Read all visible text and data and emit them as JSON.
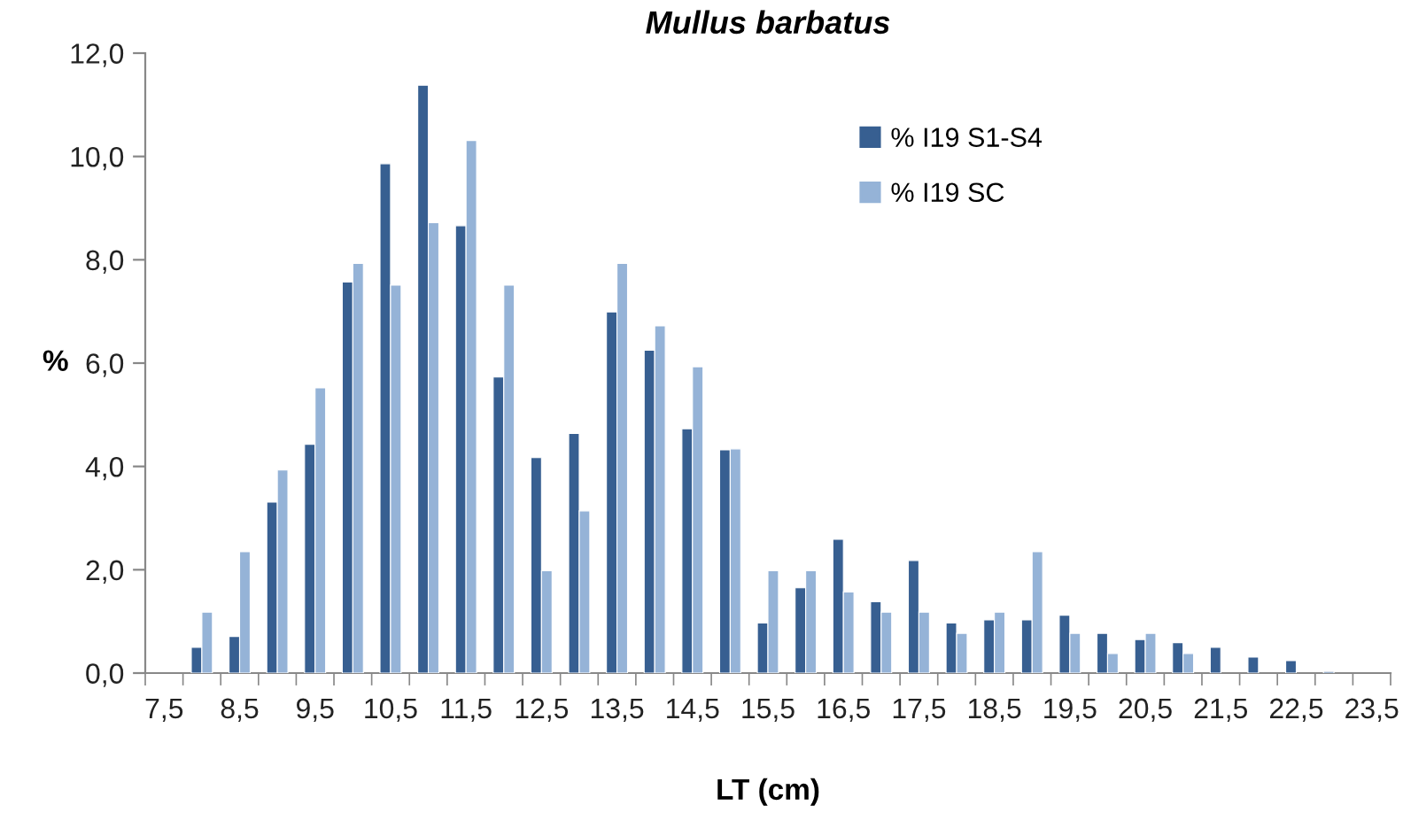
{
  "chart_data": {
    "type": "bar",
    "title": "Mullus barbatus",
    "xlabel": "LT (cm)",
    "ylabel": "%",
    "categories": [
      "7,5",
      null,
      "8,5",
      null,
      "9,5",
      null,
      "10,5",
      null,
      "11,5",
      null,
      "12,5",
      null,
      "13,5",
      null,
      "14,5",
      null,
      "15,5",
      null,
      "16,5",
      null,
      "17,5",
      null,
      "18,5",
      null,
      "19,5",
      null,
      "20,5",
      null,
      "21,5",
      null,
      "22,5",
      null,
      "23,5"
    ],
    "series": [
      {
        "name": "% I19 S1-S4",
        "color": "#375f91",
        "values": [
          null,
          0.5,
          0.71,
          3.31,
          4.43,
          7.57,
          9.86,
          11.38,
          8.66,
          5.73,
          4.17,
          4.64,
          6.99,
          6.25,
          4.73,
          4.32,
          0.97,
          1.65,
          2.59,
          1.38,
          2.18,
          0.97,
          1.03,
          1.03,
          1.12,
          0.77,
          0.65,
          0.59,
          0.5,
          0.31,
          0.24,
          0.03,
          null
        ]
      },
      {
        "name": "% I19 SC",
        "color": "#95b3d7",
        "values": [
          null,
          1.18,
          2.35,
          3.93,
          5.52,
          7.93,
          7.51,
          8.72,
          10.31,
          7.51,
          1.98,
          3.14,
          7.93,
          6.72,
          5.93,
          4.34,
          1.98,
          1.98,
          1.57,
          1.18,
          1.18,
          0.77,
          1.18,
          2.35,
          0.77,
          0.38,
          0.77,
          0.38,
          null,
          null,
          null,
          null,
          null
        ]
      }
    ],
    "ylim": [
      0,
      12
    ],
    "yticks": [
      {
        "value": 0,
        "label": "0,0"
      },
      {
        "value": 2,
        "label": "2,0"
      },
      {
        "value": 4,
        "label": "4,0"
      },
      {
        "value": 6,
        "label": "6,0"
      },
      {
        "value": 8,
        "label": "8,0"
      },
      {
        "value": 10,
        "label": "10,0"
      },
      {
        "value": 12,
        "label": "12,0"
      }
    ],
    "grid": false,
    "legend": "top right"
  }
}
